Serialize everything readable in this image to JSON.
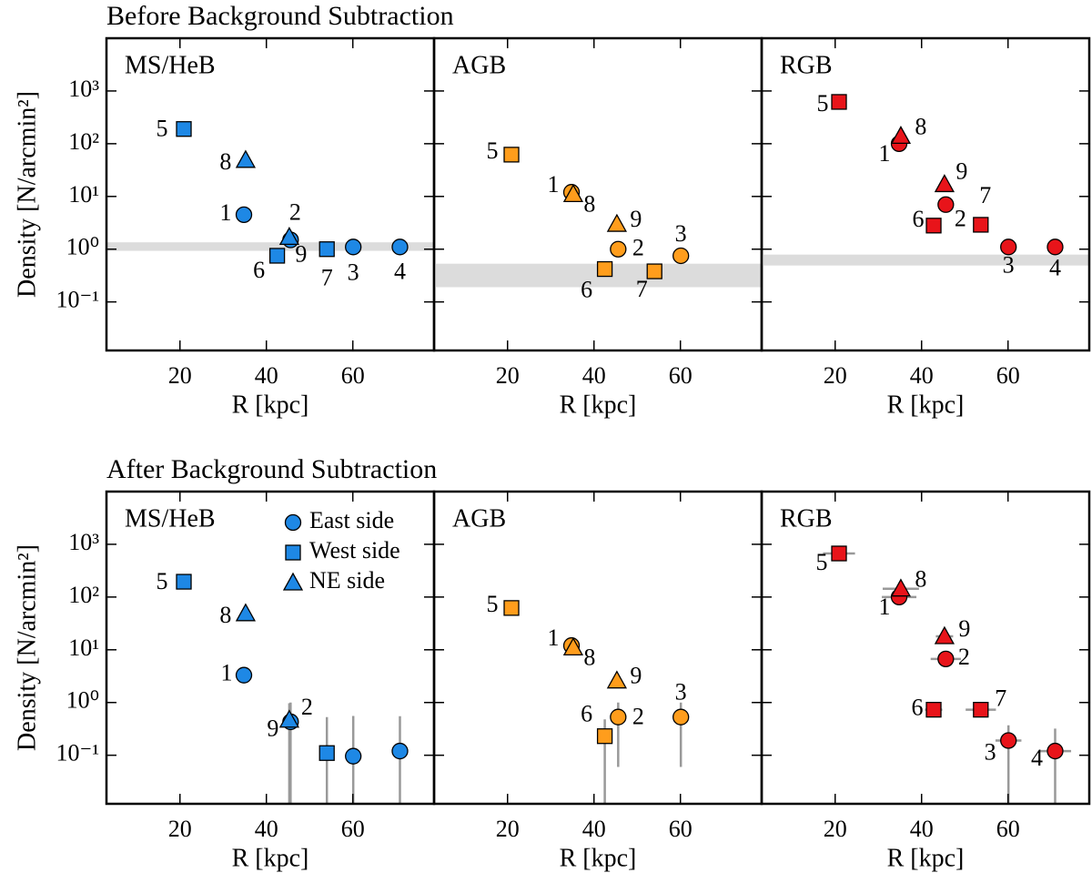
{
  "chart_data": [
    {
      "type": "scatter",
      "row_title": "Before Background Subtraction",
      "title": "MS/HeB",
      "xlabel": "R [kpc]",
      "ylabel": "Density [N/arcmin²]",
      "xlim": [
        3,
        78.8
      ],
      "xticks": [
        20,
        40,
        60
      ],
      "ylim": [
        0.012,
        10000
      ],
      "yscale": "log",
      "yticks": [
        {
          "value": 0.1,
          "label": "10⁻¹"
        },
        {
          "value": 1,
          "label": "10⁰"
        },
        {
          "value": 10,
          "label": "10¹"
        },
        {
          "value": 100,
          "label": "10²"
        },
        {
          "value": 1000,
          "label": "10³"
        }
      ],
      "band": [
        0.93,
        1.35
      ],
      "band_color": "#dcdcdc",
      "series": [
        {
          "marker": "circle",
          "color": "#1e88e5",
          "x": [
            34.8,
            45.6,
            60.1,
            70.9
          ],
          "values": [
            4.5,
            1.5,
            1.1,
            1.1
          ],
          "labels": [
            "1",
            "2",
            "3",
            "4"
          ]
        },
        {
          "marker": "square",
          "color": "#1e88e5",
          "x": [
            20.9,
            42.5,
            54.0
          ],
          "values": [
            190,
            0.75,
            1.0
          ],
          "labels": [
            "5",
            "6",
            "7"
          ]
        },
        {
          "marker": "triangle",
          "color": "#1e88e5",
          "x": [
            35.2,
            45.3
          ],
          "values": [
            49,
            1.7
          ],
          "labels": [
            "8",
            "9"
          ]
        }
      ]
    },
    {
      "type": "scatter",
      "title": "AGB",
      "xlabel": "R [kpc]",
      "xlim": [
        3,
        78.8
      ],
      "xticks": [
        20,
        40,
        60
      ],
      "ylim": [
        0.012,
        10000
      ],
      "yscale": "log",
      "yticks": [
        0.1,
        1,
        10,
        100,
        1000
      ],
      "ytick_labels": false,
      "band": [
        0.19,
        0.53
      ],
      "band_color": "#dcdcdc",
      "series": [
        {
          "marker": "circle",
          "color": "#ff9d1c",
          "x": [
            34.8,
            45.6,
            60.1
          ],
          "values": [
            12,
            1.0,
            0.75
          ],
          "labels": [
            "1",
            "2",
            "3"
          ]
        },
        {
          "marker": "square",
          "color": "#ff9d1c",
          "x": [
            20.9,
            42.5,
            54.0
          ],
          "values": [
            62,
            0.42,
            0.38
          ],
          "labels": [
            "5",
            "6",
            "7"
          ]
        },
        {
          "marker": "triangle",
          "color": "#ff9d1c",
          "x": [
            35.2,
            45.3
          ],
          "values": [
            11,
            3.0
          ],
          "labels": [
            "8",
            "9"
          ]
        }
      ]
    },
    {
      "type": "scatter",
      "title": "RGB",
      "xlabel": "R [kpc]",
      "xlim": [
        3,
        78.8
      ],
      "xticks": [
        20,
        40,
        60
      ],
      "ylim": [
        0.012,
        10000
      ],
      "yscale": "log",
      "yticks": [
        0.1,
        1,
        10,
        100,
        1000
      ],
      "ytick_labels": false,
      "band": [
        0.49,
        0.79
      ],
      "band_color": "#dcdcdc",
      "series": [
        {
          "marker": "circle",
          "color": "#e8141a",
          "x": [
            34.8,
            45.6,
            60.1,
            70.9
          ],
          "values": [
            100,
            7.0,
            1.1,
            1.1
          ],
          "labels": [
            "1",
            "2",
            "3",
            "4"
          ]
        },
        {
          "marker": "square",
          "color": "#e8141a",
          "x": [
            20.9,
            42.8,
            53.7
          ],
          "values": [
            620,
            2.8,
            2.9
          ],
          "labels": [
            "5",
            "6",
            "7"
          ]
        },
        {
          "marker": "triangle",
          "color": "#e8141a",
          "x": [
            35.2,
            45.3
          ],
          "values": [
            140,
            17
          ],
          "labels": [
            "8",
            "9"
          ]
        }
      ]
    },
    {
      "type": "scatter",
      "row_title": "After Background Subtraction",
      "title": "MS/HeB",
      "xlabel": "R [kpc]",
      "ylabel": "Density [N/arcmin²]",
      "xlim": [
        3,
        78.8
      ],
      "xticks": [
        20,
        40,
        60
      ],
      "ylim": [
        0.012,
        10000
      ],
      "yscale": "log",
      "yticks": [
        {
          "value": 0.1,
          "label": "10⁻¹"
        },
        {
          "value": 1,
          "label": "10⁰"
        },
        {
          "value": 10,
          "label": "10¹"
        },
        {
          "value": 100,
          "label": "10²"
        },
        {
          "value": 1000,
          "label": "10³"
        }
      ],
      "legend": "upper right",
      "series": [
        {
          "name": "East side",
          "marker": "circle",
          "color": "#1e88e5",
          "x": [
            34.8,
            45.6,
            60.1,
            70.9
          ],
          "values": [
            3.3,
            0.43,
            0.096,
            0.12
          ],
          "yerr": [
            null,
            0.57,
            0.46,
            0.43
          ],
          "labels": [
            "1",
            "2",
            null,
            null
          ]
        },
        {
          "name": "West side",
          "marker": "square",
          "color": "#1e88e5",
          "x": [
            20.9,
            42.5,
            54.0
          ],
          "values": [
            195,
            null,
            0.11
          ],
          "yerr": [
            null,
            null,
            0.42
          ],
          "labels": [
            "5",
            null,
            null
          ]
        },
        {
          "name": "NE side",
          "marker": "triangle",
          "color": "#1e88e5",
          "x": [
            35.2,
            45.3
          ],
          "values": [
            49,
            0.47
          ],
          "yerr": [
            null,
            0.5
          ],
          "labels": [
            "8",
            "9"
          ]
        }
      ]
    },
    {
      "type": "scatter",
      "title": "AGB",
      "xlabel": "R [kpc]",
      "xlim": [
        3,
        78.8
      ],
      "xticks": [
        20,
        40,
        60
      ],
      "ylim": [
        0.012,
        10000
      ],
      "yscale": "log",
      "yticks": [
        0.1,
        1,
        10,
        100,
        1000
      ],
      "ytick_labels": false,
      "series": [
        {
          "marker": "circle",
          "color": "#ff9d1c",
          "x": [
            34.8,
            45.6,
            60.1
          ],
          "values": [
            12,
            0.53,
            0.53
          ],
          "yerr": [
            null,
            0.47,
            0.47
          ],
          "labels": [
            "1",
            "2",
            "3"
          ]
        },
        {
          "marker": "square",
          "color": "#ff9d1c",
          "x": [
            20.9,
            42.5,
            54.0
          ],
          "values": [
            62,
            0.23,
            null
          ],
          "yerr": [
            null,
            0.25,
            null
          ],
          "labels": [
            "5",
            "6",
            null
          ]
        },
        {
          "marker": "triangle",
          "color": "#ff9d1c",
          "x": [
            35.2,
            45.3
          ],
          "values": [
            11,
            2.6
          ],
          "yerr": [
            null,
            null
          ],
          "labels": [
            "8",
            "9"
          ]
        }
      ]
    },
    {
      "type": "scatter",
      "title": "RGB",
      "xlabel": "R [kpc]",
      "xlim": [
        3,
        78.8
      ],
      "xticks": [
        20,
        40,
        60
      ],
      "ylim": [
        0.012,
        10000
      ],
      "yscale": "log",
      "yticks": [
        0.1,
        1,
        10,
        100,
        1000
      ],
      "ytick_labels": false,
      "series": [
        {
          "marker": "circle",
          "color": "#e8141a",
          "x": [
            34.8,
            45.6,
            60.1,
            70.9
          ],
          "values": [
            100,
            6.7,
            0.19,
            0.12
          ],
          "yerr": [
            null,
            null,
            0.18,
            0.2
          ],
          "xerr": [
            4,
            3.5,
            3,
            3.7
          ],
          "labels": [
            "1",
            "2",
            "3",
            "4"
          ]
        },
        {
          "marker": "square",
          "color": "#e8141a",
          "x": [
            20.9,
            42.8,
            53.7
          ],
          "values": [
            670,
            0.73,
            0.73
          ],
          "yerr": [
            null,
            null,
            null
          ],
          "xerr": [
            3.7,
            2,
            3.5
          ],
          "labels": [
            "5",
            "6",
            "7"
          ]
        },
        {
          "marker": "triangle",
          "color": "#e8141a",
          "x": [
            35.2,
            45.3
          ],
          "values": [
            144,
            18
          ],
          "yerr": [
            null,
            null
          ],
          "xerr": [
            4.2,
            2
          ],
          "labels": [
            "8",
            "9"
          ]
        }
      ]
    }
  ]
}
